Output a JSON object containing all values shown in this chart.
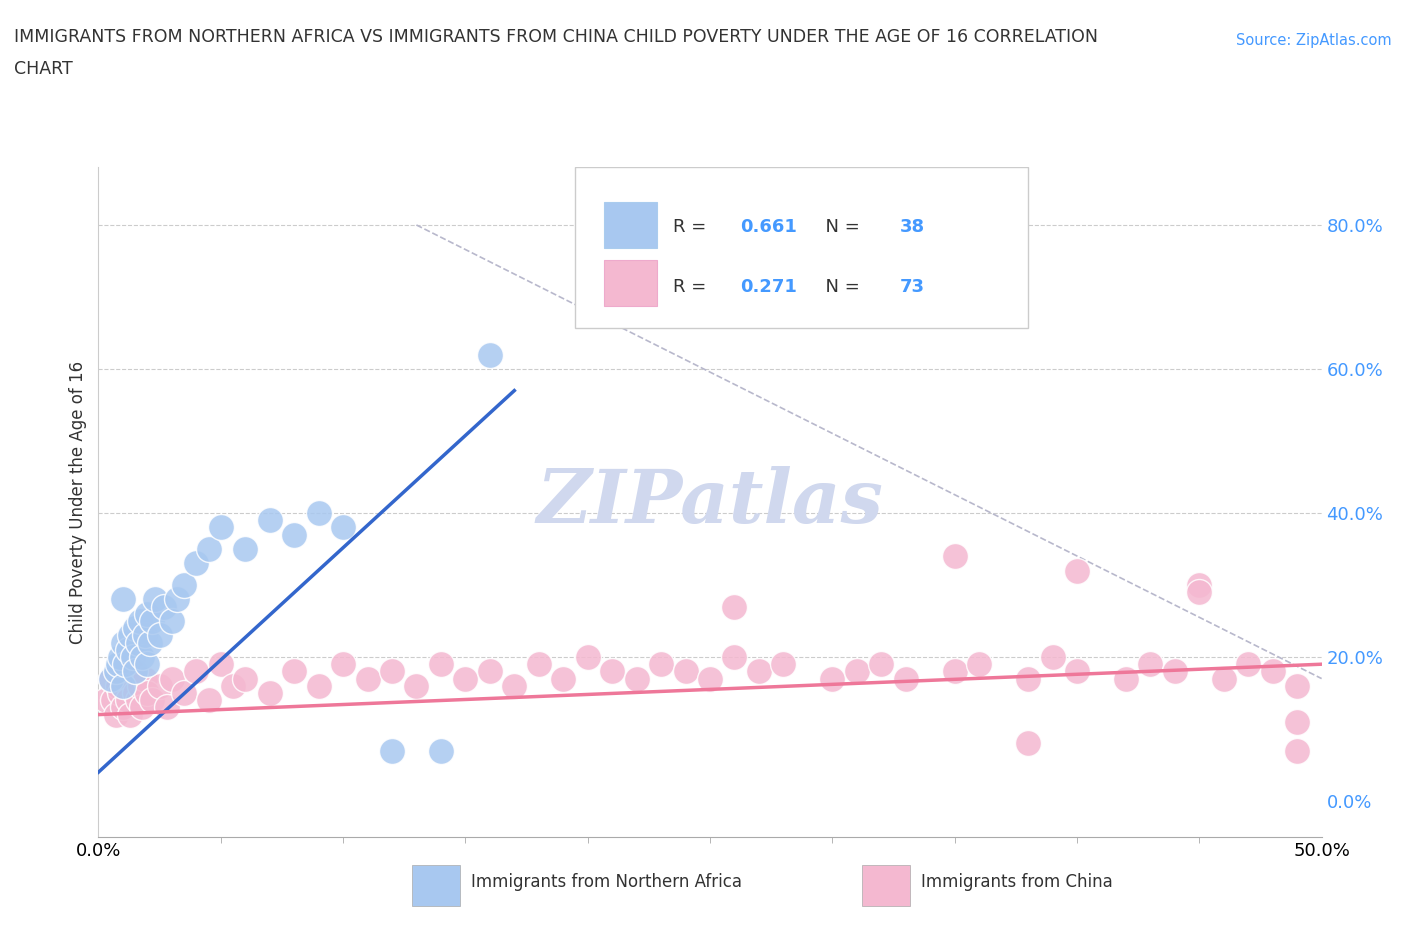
{
  "title_line1": "IMMIGRANTS FROM NORTHERN AFRICA VS IMMIGRANTS FROM CHINA CHILD POVERTY UNDER THE AGE OF 16 CORRELATION",
  "title_line2": "CHART",
  "source_text": "Source: ZipAtlas.com",
  "ylabel": "Child Poverty Under the Age of 16",
  "xlim": [
    0.0,
    0.5
  ],
  "ylim": [
    -0.05,
    0.88
  ],
  "yticks": [
    0.0,
    0.2,
    0.4,
    0.6,
    0.8
  ],
  "ytick_labels": [
    "0.0%",
    "20.0%",
    "40.0%",
    "60.0%",
    "80.0%"
  ],
  "r_northern_africa": 0.661,
  "n_northern_africa": 38,
  "r_china": 0.271,
  "n_china": 73,
  "northern_africa_color": "#a8c8f0",
  "china_color": "#f4b8d0",
  "trendline_na_color": "#3366cc",
  "trendline_china_color": "#ee7799",
  "dashed_line_color": "#b8b8cc",
  "watermark_color": "#d0d8ee",
  "na_x": [
    0.005,
    0.007,
    0.008,
    0.009,
    0.01,
    0.01,
    0.01,
    0.011,
    0.012,
    0.013,
    0.014,
    0.015,
    0.015,
    0.016,
    0.017,
    0.018,
    0.019,
    0.02,
    0.02,
    0.021,
    0.022,
    0.023,
    0.025,
    0.027,
    0.03,
    0.032,
    0.035,
    0.04,
    0.045,
    0.05,
    0.06,
    0.07,
    0.08,
    0.09,
    0.1,
    0.12,
    0.14,
    0.16
  ],
  "na_y": [
    0.17,
    0.18,
    0.19,
    0.2,
    0.16,
    0.22,
    0.28,
    0.19,
    0.21,
    0.23,
    0.2,
    0.24,
    0.18,
    0.22,
    0.25,
    0.2,
    0.23,
    0.19,
    0.26,
    0.22,
    0.25,
    0.28,
    0.23,
    0.27,
    0.25,
    0.28,
    0.3,
    0.33,
    0.35,
    0.38,
    0.35,
    0.39,
    0.37,
    0.4,
    0.38,
    0.07,
    0.07,
    0.62
  ],
  "china_x": [
    0.003,
    0.005,
    0.006,
    0.007,
    0.008,
    0.009,
    0.01,
    0.011,
    0.012,
    0.013,
    0.014,
    0.015,
    0.016,
    0.017,
    0.018,
    0.019,
    0.02,
    0.022,
    0.025,
    0.028,
    0.03,
    0.035,
    0.04,
    0.045,
    0.05,
    0.055,
    0.06,
    0.07,
    0.08,
    0.09,
    0.1,
    0.11,
    0.12,
    0.13,
    0.14,
    0.15,
    0.16,
    0.17,
    0.18,
    0.19,
    0.2,
    0.21,
    0.22,
    0.23,
    0.24,
    0.25,
    0.26,
    0.27,
    0.28,
    0.3,
    0.31,
    0.32,
    0.33,
    0.35,
    0.36,
    0.38,
    0.39,
    0.4,
    0.42,
    0.43,
    0.44,
    0.45,
    0.46,
    0.47,
    0.48,
    0.49,
    0.49,
    0.35,
    0.4,
    0.45,
    0.26,
    0.38,
    0.49
  ],
  "china_y": [
    0.14,
    0.17,
    0.14,
    0.12,
    0.16,
    0.15,
    0.13,
    0.17,
    0.14,
    0.12,
    0.18,
    0.15,
    0.14,
    0.16,
    0.13,
    0.17,
    0.15,
    0.14,
    0.16,
    0.13,
    0.17,
    0.15,
    0.18,
    0.14,
    0.19,
    0.16,
    0.17,
    0.15,
    0.18,
    0.16,
    0.19,
    0.17,
    0.18,
    0.16,
    0.19,
    0.17,
    0.18,
    0.16,
    0.19,
    0.17,
    0.2,
    0.18,
    0.17,
    0.19,
    0.18,
    0.17,
    0.2,
    0.18,
    0.19,
    0.17,
    0.18,
    0.19,
    0.17,
    0.18,
    0.19,
    0.17,
    0.2,
    0.18,
    0.17,
    0.19,
    0.18,
    0.3,
    0.17,
    0.19,
    0.18,
    0.11,
    0.16,
    0.34,
    0.32,
    0.29,
    0.27,
    0.08,
    0.07
  ],
  "na_trendline_x": [
    0.0,
    0.17
  ],
  "na_trendline_y": [
    0.04,
    0.57
  ],
  "china_trendline_x": [
    0.0,
    0.5
  ],
  "china_trendline_y": [
    0.12,
    0.19
  ],
  "dash_line_x": [
    0.13,
    0.5
  ],
  "dash_line_y": [
    0.8,
    0.17
  ]
}
